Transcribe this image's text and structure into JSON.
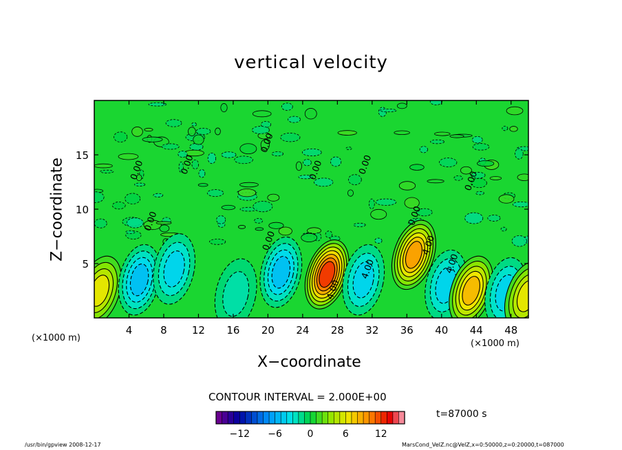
{
  "chart_data": {
    "type": "heatmap",
    "title": "vertical velocity",
    "xlabel": "X−coordinate",
    "ylabel": "Z−coordinate",
    "x_unit_left": "(×1000 m)",
    "x_unit_right": "(×1000 m)",
    "x_ticks": [
      4,
      8,
      12,
      16,
      20,
      24,
      28,
      32,
      36,
      40,
      44,
      48
    ],
    "y_ticks": [
      5,
      10,
      15
    ],
    "xlim": [
      0,
      50
    ],
    "ylim": [
      0,
      20
    ],
    "contour_labels": [
      {
        "x": 5.2,
        "y": 13.5,
        "text": "0.00"
      },
      {
        "x": 11.0,
        "y": 14.0,
        "text": "0.00"
      },
      {
        "x": 20.2,
        "y": 16.0,
        "text": "0.00"
      },
      {
        "x": 25.8,
        "y": 13.5,
        "text": "0.00"
      },
      {
        "x": 31.5,
        "y": 14.0,
        "text": "0.00"
      },
      {
        "x": 6.8,
        "y": 8.8,
        "text": "0.00"
      },
      {
        "x": 20.4,
        "y": 7.0,
        "text": "0.00"
      },
      {
        "x": 37.2,
        "y": 9.3,
        "text": "0.00"
      },
      {
        "x": 43.7,
        "y": 12.5,
        "text": "0.00"
      },
      {
        "x": 27.8,
        "y": 2.5,
        "text": "4.00"
      },
      {
        "x": 31.8,
        "y": 4.4,
        "text": "4.00"
      },
      {
        "x": 38.8,
        "y": 6.6,
        "text": "4.00"
      },
      {
        "x": 41.5,
        "y": 4.9,
        "text": "4.00"
      }
    ],
    "features": [
      {
        "x": 0.6,
        "z": 2.5,
        "value": 6,
        "sign": "positive"
      },
      {
        "x": 5.2,
        "z": 3.5,
        "value": -5,
        "sign": "negative"
      },
      {
        "x": 9.2,
        "z": 4.5,
        "value": -4,
        "sign": "negative"
      },
      {
        "x": 16.3,
        "z": 2.2,
        "value": -2,
        "sign": "negative"
      },
      {
        "x": 21.5,
        "z": 4.2,
        "value": -5,
        "sign": "negative"
      },
      {
        "x": 26.8,
        "z": 4.0,
        "value": 12,
        "sign": "positive"
      },
      {
        "x": 31.0,
        "z": 3.5,
        "value": -4,
        "sign": "negative"
      },
      {
        "x": 36.8,
        "z": 5.8,
        "value": 9,
        "sign": "positive"
      },
      {
        "x": 40.5,
        "z": 3.0,
        "value": -4,
        "sign": "negative"
      },
      {
        "x": 43.4,
        "z": 2.5,
        "value": 8,
        "sign": "positive"
      },
      {
        "x": 47.4,
        "z": 2.3,
        "value": -4,
        "sign": "negative"
      },
      {
        "x": 49.8,
        "z": 2.0,
        "value": 6,
        "sign": "positive"
      }
    ],
    "colorbar": {
      "range": [
        -16,
        16
      ],
      "tick_values": [
        -12,
        -6,
        0,
        6,
        12
      ],
      "tick_labels": [
        "−12",
        "−6",
        "0",
        "6",
        "12"
      ]
    }
  },
  "contour_interval": "CONTOUR INTERVAL = 2.000E+00",
  "time_label": "t=87000 s",
  "footer_left": "/usr/bin/gpview  2008-12-17",
  "footer_right": "MarsCond_VelZ.nc@VelZ,x=0:50000,z=0:20000,t=087000"
}
